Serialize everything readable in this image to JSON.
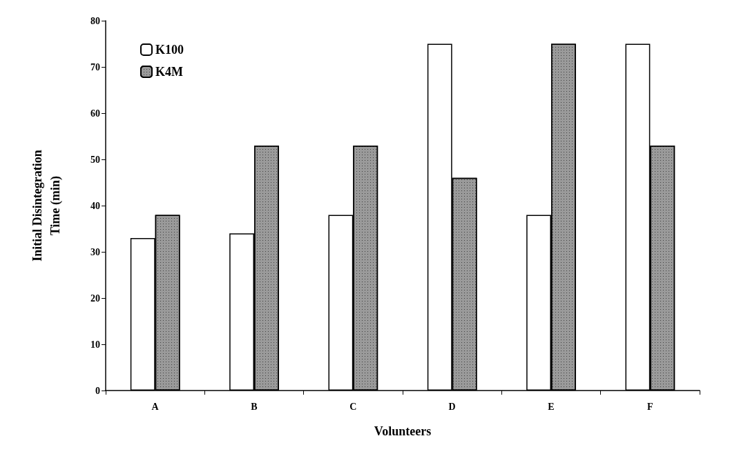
{
  "chart_data": {
    "type": "bar",
    "xlabel": "Volunteers",
    "ylabel": "Initial Disintegration\nTime (min)",
    "categories": [
      "A",
      "B",
      "C",
      "D",
      "E",
      "F"
    ],
    "series": [
      {
        "name": "K100",
        "color": "#ffffff",
        "values": [
          33,
          34,
          38,
          75,
          38,
          75
        ]
      },
      {
        "name": "K4M",
        "color": "#9a9a9a",
        "values": [
          38,
          53,
          53,
          46,
          75,
          53
        ]
      }
    ],
    "ylim": [
      0,
      80
    ],
    "yticks": [
      0,
      10,
      20,
      30,
      40,
      50,
      60,
      70,
      80
    ],
    "grid": false,
    "legend": "top left"
  }
}
